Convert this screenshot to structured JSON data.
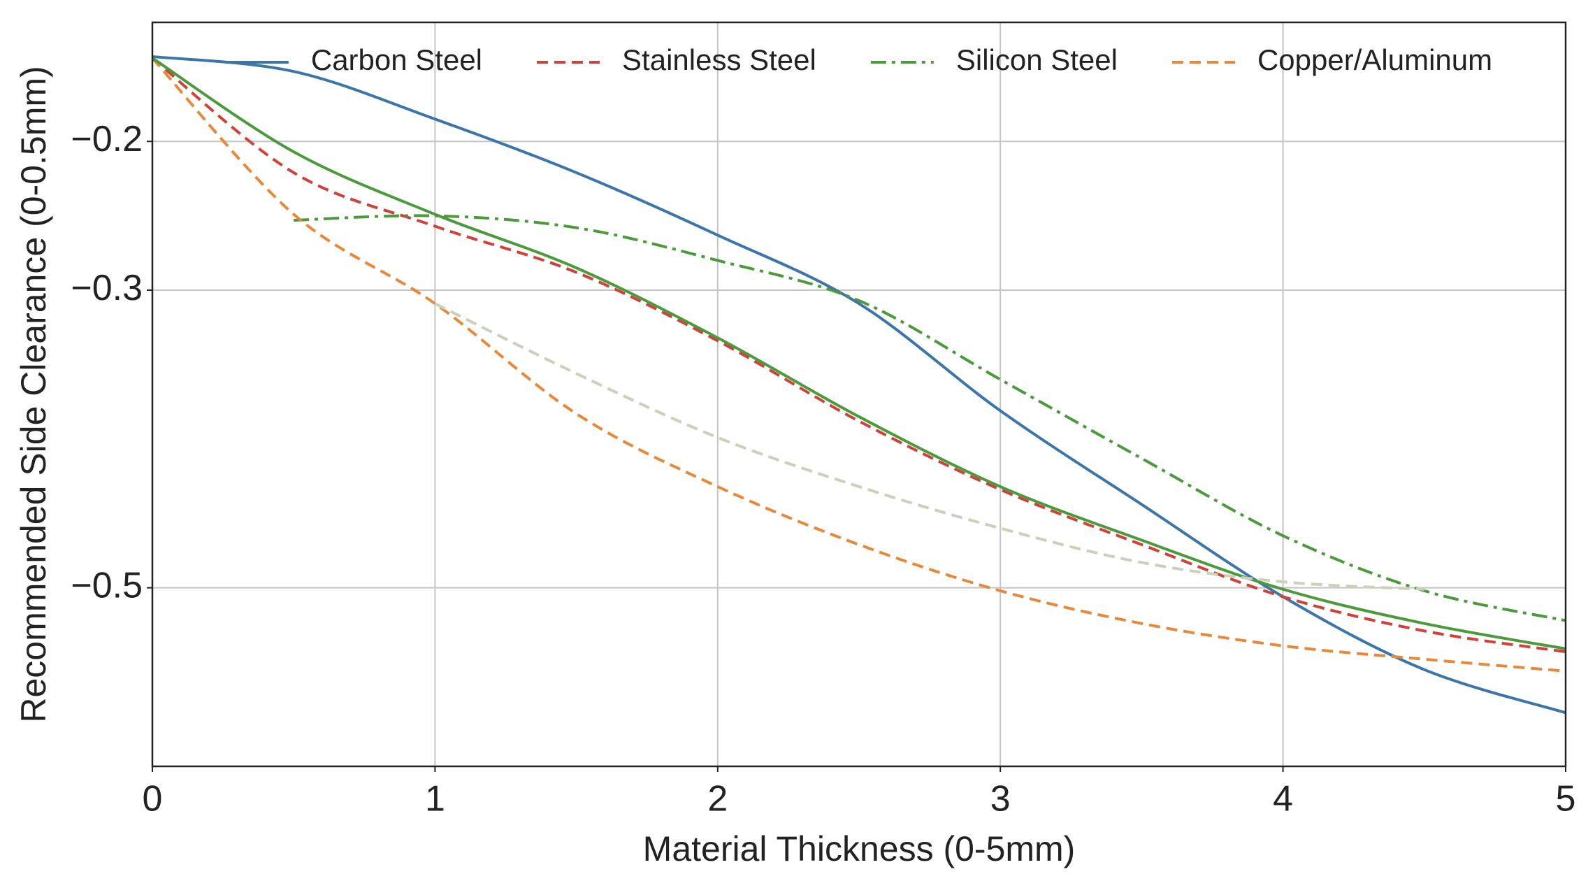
{
  "chart_data": {
    "type": "line",
    "xlabel": "Material Thickness (0-5mm)",
    "ylabel": "Recommended Side Clearance (0-0.5mm)",
    "x": [
      0,
      0.5,
      1,
      1.5,
      2,
      2.5,
      3,
      3.5,
      4,
      4.5,
      5
    ],
    "series": [
      {
        "name": "Carbon Steel",
        "color": "#3b75a9",
        "linestyle": "solid",
        "values": [
          -0.143,
          -0.153,
          -0.185,
          -0.221,
          -0.263,
          -0.309,
          -0.381,
          -0.444,
          -0.506,
          -0.555,
          -0.584
        ]
      },
      {
        "name": "Stainless Steel",
        "color": "#d0413a",
        "linestyle": "dashed",
        "values": [
          -0.144,
          -0.221,
          -0.257,
          -0.288,
          -0.334,
          -0.388,
          -0.434,
          -0.471,
          -0.506,
          -0.529,
          -0.543
        ]
      },
      {
        "name": "Silicon Steel",
        "color": "#4b9a3b",
        "linestyle": "dashdot",
        "values": [
          null,
          -0.253,
          -0.25,
          -0.258,
          -0.28,
          -0.307,
          -0.36,
          -0.413,
          -0.465,
          -0.502,
          -0.522
        ]
      },
      {
        "name": "Copper/Aluminum",
        "color": "#e8883a",
        "linestyle": "dashed",
        "values": [
          -0.144,
          -0.249,
          -0.309,
          -0.383,
          -0.432,
          -0.471,
          -0.502,
          -0.524,
          -0.539,
          -0.548,
          -0.556
        ]
      },
      {
        "color": "#4b9a3b",
        "linestyle": "solid",
        "values": [
          -0.144,
          -0.207,
          -0.249,
          -0.285,
          -0.332,
          -0.385,
          -0.432,
          -0.468,
          -0.501,
          -0.524,
          -0.541
        ]
      },
      {
        "color": "#c9d1bb",
        "linestyle": "dashed",
        "values": [
          null,
          null,
          -0.309,
          -0.356,
          -0.399,
          -0.432,
          -0.46,
          -0.483,
          -0.496,
          -0.501,
          null
        ]
      }
    ],
    "xlim": [
      0,
      5
    ],
    "xticks": [
      0,
      1,
      2,
      3,
      4,
      5
    ],
    "ylim": [
      -0.62,
      -0.12
    ],
    "yticks": [
      {
        "value": -0.2,
        "label": "−0.2"
      },
      {
        "value": -0.3,
        "label": "−0.3"
      },
      {
        "value": -0.5,
        "label": "−0.5"
      }
    ],
    "grid": true,
    "legend": "upper center"
  }
}
